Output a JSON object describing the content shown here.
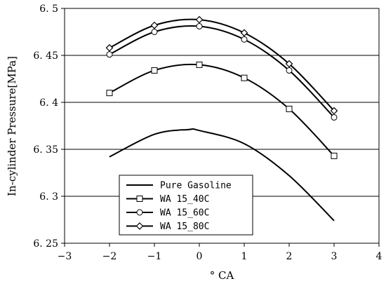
{
  "chart_data": {
    "type": "line",
    "title": "",
    "xlabel": "° CA",
    "ylabel": "In-cylinder Pressure[MPa]",
    "xlim": [
      -3,
      4
    ],
    "ylim": [
      6.25,
      6.5
    ],
    "x_ticks": [
      -3,
      -2,
      -1,
      0,
      1,
      2,
      3,
      4
    ],
    "x_tick_labels": [
      "−3",
      "−2",
      "−1",
      "0",
      "1",
      "2",
      "3",
      "4"
    ],
    "y_ticks": [
      6.25,
      6.3,
      6.35,
      6.4,
      6.45,
      6.5
    ],
    "y_tick_labels": [
      "6. 25",
      "6. 3",
      "6. 35",
      "6. 4",
      "6. 45",
      "6. 5"
    ],
    "grid": "horizontal",
    "legend_position": "bottom-left",
    "series": [
      {
        "name": "Pure Gasoline",
        "marker": "none",
        "color": "#000000",
        "x": [
          -2,
          -1,
          -0.25,
          0,
          1,
          2,
          3
        ],
        "y": [
          6.342,
          6.366,
          6.371,
          6.37,
          6.356,
          6.322,
          6.274
        ]
      },
      {
        "name": "WA 15_40C",
        "marker": "square",
        "color": "#000000",
        "x": [
          -2,
          -1,
          0,
          1,
          2,
          3
        ],
        "y": [
          6.41,
          6.434,
          6.44,
          6.426,
          6.393,
          6.343
        ]
      },
      {
        "name": "WA 15_60C",
        "marker": "circle",
        "color": "#000000",
        "x": [
          -2,
          -1,
          0,
          1,
          2,
          3
        ],
        "y": [
          6.451,
          6.475,
          6.481,
          6.467,
          6.434,
          6.384
        ]
      },
      {
        "name": "WA 15_80C",
        "marker": "diamond",
        "color": "#000000",
        "x": [
          -2,
          -1,
          0,
          1,
          2,
          3
        ],
        "y": [
          6.458,
          6.482,
          6.488,
          6.474,
          6.441,
          6.391
        ]
      }
    ]
  }
}
